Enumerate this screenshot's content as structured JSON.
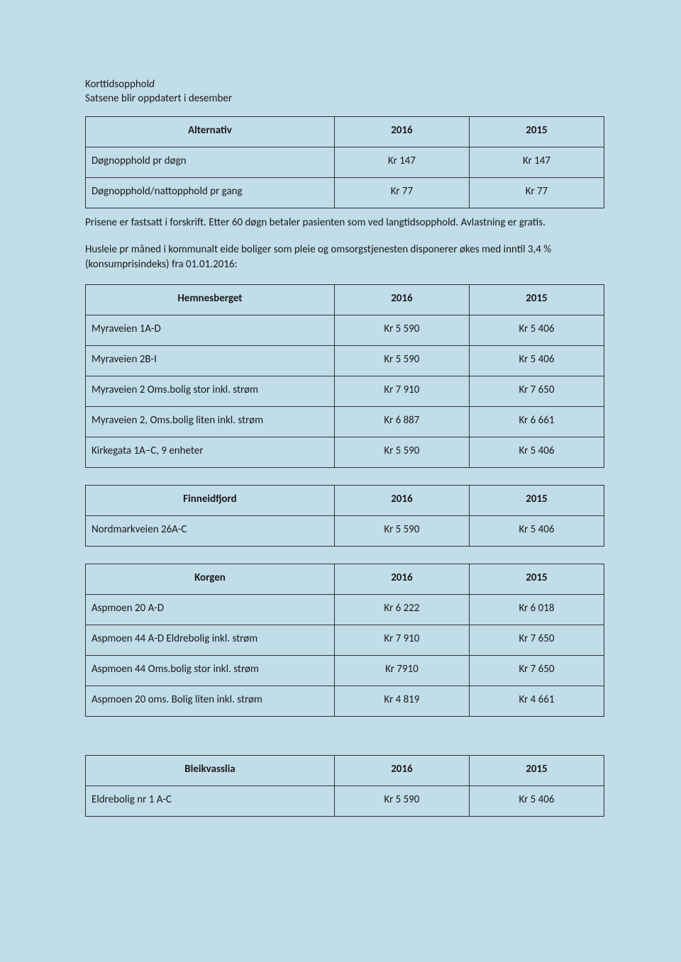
{
  "intro": {
    "title_prefix": "Korttidsopphol",
    "title_suffix_italic": "d",
    "subtitle": "Satsene blir oppdatert i desember"
  },
  "table_alternativ": {
    "headers": [
      "Alternativ",
      "2016",
      "2015"
    ],
    "rows": [
      [
        "Døgnopphold pr døgn",
        "Kr 147",
        "Kr 147"
      ],
      [
        "Døgnopphold/nattopphold pr gang",
        "Kr 77",
        "Kr 77"
      ]
    ]
  },
  "para1": "Prisene er fastsatt i forskrift. Etter 60 døgn betaler pasienten som ved langtidsopphold.  Avlastning er gratis.",
  "para2": "Husleie pr måned i kommunalt eide boliger som pleie og omsorgstjenesten disponerer økes med inntil 3,4 % (konsumprisindeks) fra 01.01.2016:",
  "table_hemnesberget": {
    "headers": [
      "Hemnesberget",
      "2016",
      "2015"
    ],
    "rows": [
      [
        "Myraveien 1A-D",
        "Kr 5 590",
        "Kr 5 406"
      ],
      [
        "Myraveien 2B-I",
        "Kr 5 590",
        "Kr 5 406"
      ],
      [
        "Myraveien 2 Oms.bolig stor inkl. strøm",
        "Kr 7 910",
        "Kr 7 650"
      ],
      [
        "Myraveien 2, Oms.bolig liten inkl. strøm",
        "Kr 6 887",
        "Kr 6 661"
      ],
      [
        "Kirkegata 1A–C, 9 enheter",
        "Kr 5 590",
        "Kr 5 406"
      ]
    ]
  },
  "table_finneidfjord": {
    "headers": [
      "Finneidfjord",
      "2016",
      "2015"
    ],
    "rows": [
      [
        "Nordmarkveien 26A-C",
        "Kr 5 590",
        "Kr 5 406"
      ]
    ]
  },
  "table_korgen": {
    "headers": [
      "Korgen",
      "2016",
      "2015"
    ],
    "rows": [
      [
        "Aspmoen 20 A-D",
        "Kr 6 222",
        "Kr 6 018"
      ],
      [
        "Aspmoen 44 A-D Eldrebolig inkl. strøm",
        "Kr 7 910",
        "Kr 7 650"
      ],
      [
        "Aspmoen 44  Oms.bolig stor inkl. strøm",
        "Kr 7910",
        "Kr 7 650"
      ],
      [
        "Aspmoen 20 oms. Bolig liten inkl. strøm",
        "Kr 4 819",
        "Kr 4 661"
      ]
    ]
  },
  "table_bleikvasslia": {
    "headers": [
      "Bleikvasslia",
      "2016",
      "2015"
    ],
    "rows": [
      [
        "Eldrebolig nr 1 A-C",
        "Kr 5 590",
        "Kr 5 406"
      ]
    ]
  },
  "style": {
    "background_color": "#c0dde8",
    "text_color": "#1a1a1a",
    "border_color": "#333333",
    "font_family": "Calibri, Arial, sans-serif",
    "body_fontsize": 15,
    "col_left_width_pct": 48,
    "col_num_width_pct": 26
  }
}
